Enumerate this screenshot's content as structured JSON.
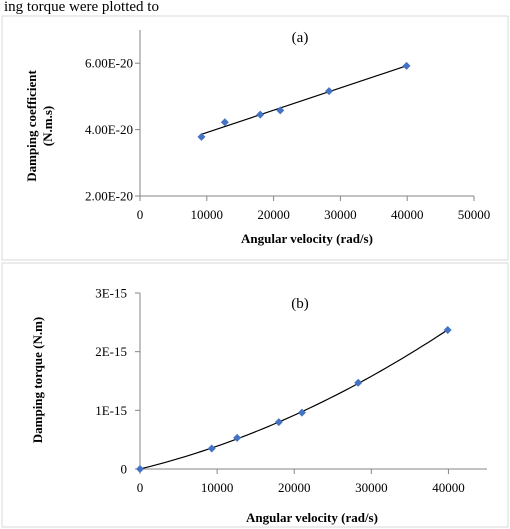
{
  "header_fragment": "ing torque were plotted to",
  "chart_data": [
    {
      "type": "scatter",
      "label": "(a)",
      "xlabel": "Angular velocity (rad/s)",
      "ylabel_line1": "Damping coefficient",
      "ylabel_line2": "(N.m.s)",
      "xlim": [
        0,
        50000
      ],
      "ylim": [
        2e-20,
        7e-20
      ],
      "xticks": [
        0,
        10000,
        20000,
        30000,
        40000,
        50000
      ],
      "xtick_labels": [
        "0",
        "10000",
        "20000",
        "30000",
        "40000",
        "50000"
      ],
      "yticks": [
        2e-20,
        4e-20,
        6e-20
      ],
      "ytick_labels": [
        "2.00E-20",
        "4.00E-20",
        "6.00E-20"
      ],
      "trendline": "linear",
      "grid": false,
      "marker_color": "#4472C4",
      "line_color": "#000000",
      "series": [
        {
          "x": [
            9200,
            12700,
            18000,
            21000,
            28300,
            39900
          ],
          "y": [
            3.78e-20,
            4.22e-20,
            4.45e-20,
            4.58e-20,
            5.16e-20,
            5.92e-20
          ]
        }
      ]
    },
    {
      "type": "scatter",
      "label": "(b)",
      "xlabel": "Angular velocity (rad/s)",
      "ylabel_line1": "Damping torque (N.m)",
      "ylabel_line2": "",
      "xlim": [
        0,
        45000
      ],
      "ylim": [
        0,
        3e-15
      ],
      "xticks": [
        0,
        10000,
        20000,
        30000,
        40000
      ],
      "xtick_labels": [
        "0",
        "10000",
        "20000",
        "30000",
        "40000"
      ],
      "yticks": [
        0,
        1e-15,
        2e-15,
        3e-15
      ],
      "ytick_labels": [
        "0",
        "1E-15",
        "2E-15",
        "3E-15"
      ],
      "trendline": "polynomial",
      "grid": false,
      "marker_color": "#4472C4",
      "line_color": "#000000",
      "series": [
        {
          "x": [
            0,
            9300,
            12600,
            18000,
            21000,
            28300,
            39900
          ],
          "y": [
            0,
            3.5e-16,
            5.3e-16,
            8e-16,
            9.6e-16,
            1.47e-15,
            2.37e-15
          ]
        }
      ]
    }
  ]
}
